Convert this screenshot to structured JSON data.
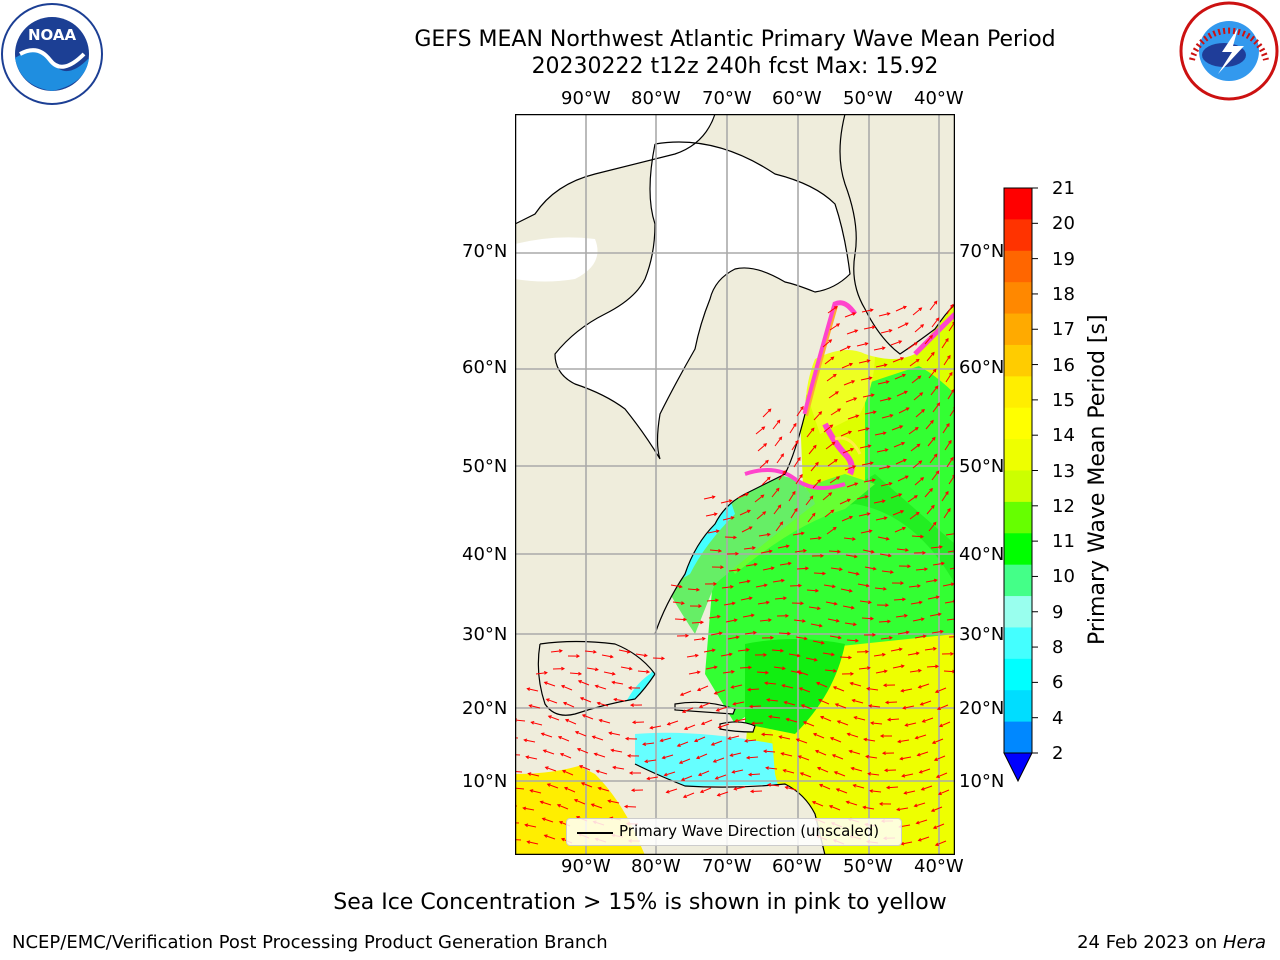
{
  "title": {
    "line1": "GEFS MEAN Northwest Atlantic Primary Wave Mean Period",
    "line2": "20230222 t12z 240h fcst   Max: 15.92"
  },
  "logos": {
    "left": "NOAA",
    "right": "NATIONAL WEATHER SERVICE"
  },
  "map": {
    "lon_labels": [
      "90°W",
      "80°W",
      "70°W",
      "60°W",
      "50°W",
      "40°W"
    ],
    "lat_labels": [
      "70°N",
      "60°N",
      "50°N",
      "40°N",
      "30°N",
      "20°N",
      "10°N"
    ],
    "legend_label": "Primary Wave Direction (unscaled)",
    "land_color": "#efeddc",
    "ice_color": "#ffffff",
    "arrow_color": "#ff0000"
  },
  "colorbar": {
    "label": "Primary Wave Mean Period [s]",
    "ticks": [
      "21",
      "20",
      "19",
      "18",
      "17",
      "16",
      "15",
      "14",
      "13",
      "12",
      "11",
      "10",
      "9",
      "8",
      "6",
      "4",
      "2"
    ],
    "colors": [
      "#ff0000",
      "#ff3300",
      "#ff6600",
      "#ff8800",
      "#ffaa00",
      "#ffcc00",
      "#ffee00",
      "#ffff00",
      "#eeff00",
      "#ccff00",
      "#66ff00",
      "#00ff00",
      "#44ff88",
      "#99ffee",
      "#44ffff",
      "#00ffff",
      "#00ddff",
      "#0088ff",
      "#0000ff"
    ]
  },
  "caption": "Sea Ice Concentration > 15% is shown in pink to yellow",
  "footer": {
    "left": "NCEP/EMC/Verification Post Processing Product Generation Branch",
    "right_prefix": "24 Feb 2023 on ",
    "right_host": "Hera"
  }
}
